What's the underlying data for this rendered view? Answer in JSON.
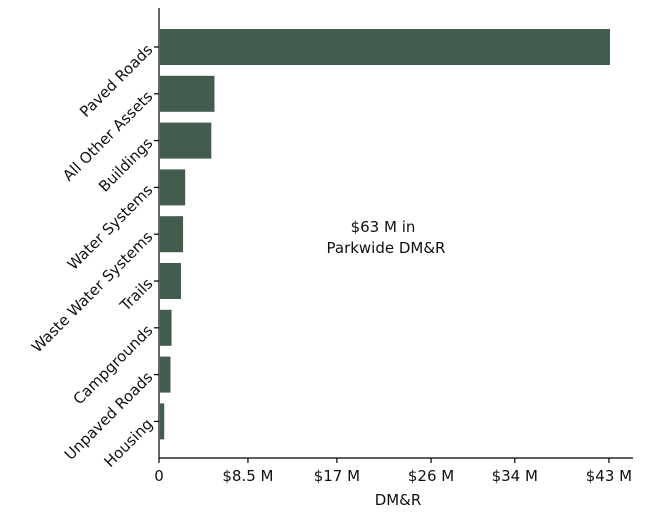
{
  "chart_data": {
    "type": "bar",
    "orientation": "horizontal",
    "categories": [
      "Paved Roads",
      "All Other Assets",
      "Buildings",
      "Water Systems",
      "Waste Water Systems",
      "Trails",
      "Campgrounds",
      "Unpaved Roads",
      "Housing"
    ],
    "values": [
      43.1,
      5.3,
      5.0,
      2.5,
      2.3,
      2.1,
      1.2,
      1.1,
      0.5
    ],
    "x_ticks": [
      0,
      8.5,
      17,
      26,
      34,
      43
    ],
    "x_tick_labels": [
      "0",
      "$8.5 M",
      "$17 M",
      "$26 M",
      "$34 M",
      "$43 M"
    ],
    "xlim": [
      0,
      45.3
    ],
    "xlabel": "DM&R",
    "ylabel": "",
    "title": "",
    "annotation": [
      "$63 M in",
      "Parkwide DM&R"
    ],
    "bar_color": "#425c4d",
    "grid": false,
    "legend": "none"
  }
}
